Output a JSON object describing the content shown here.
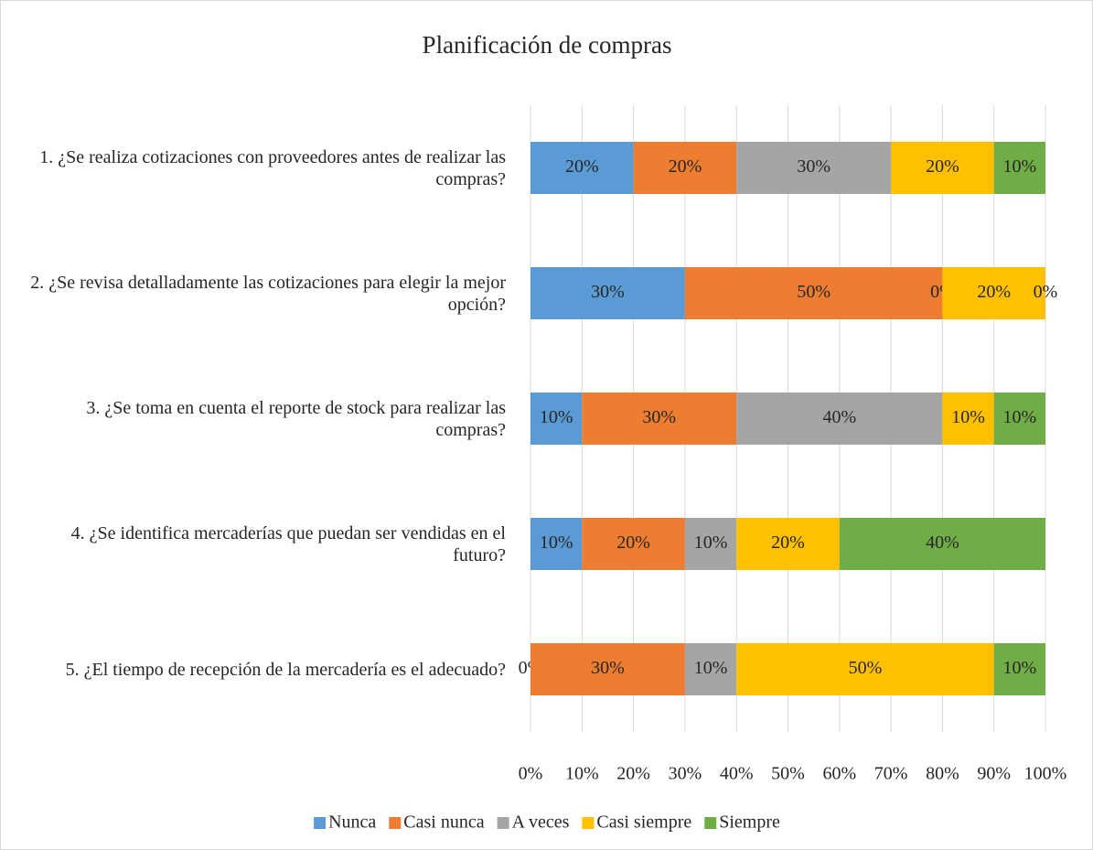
{
  "chart_data": {
    "type": "stacked_bar_horizontal",
    "title": "Planificación de compras",
    "categories": [
      "1. ¿Se realiza cotizaciones con proveedores antes de realizar las compras?",
      "2. ¿Se revisa detalladamente las cotizaciones para elegir la mejor opción?",
      "3. ¿Se toma en cuenta el reporte de stock para realizar las compras?",
      "4. ¿Se identifica mercaderías que puedan ser vendidas en el futuro?",
      "5. ¿El tiempo de recepción de la mercadería es el adecuado?"
    ],
    "series": [
      {
        "name": "Nunca",
        "color": "#5b9bd5",
        "values": [
          20,
          30,
          10,
          10,
          0
        ],
        "value_labels": [
          "20%",
          "30%",
          "10%",
          "10%",
          "0%"
        ]
      },
      {
        "name": "Casi nunca",
        "color": "#ed7d31",
        "values": [
          20,
          50,
          30,
          20,
          30
        ],
        "value_labels": [
          "20%",
          "50%",
          "30%",
          "20%",
          "30%"
        ]
      },
      {
        "name": "A veces",
        "color": "#a5a5a5",
        "values": [
          30,
          0,
          40,
          10,
          10
        ],
        "value_labels": [
          "30%",
          "0%",
          "40%",
          "10%",
          "10%"
        ]
      },
      {
        "name": "Casi siempre",
        "color": "#ffc000",
        "values": [
          20,
          20,
          10,
          20,
          50
        ],
        "value_labels": [
          "20%",
          "20%",
          "10%",
          "20%",
          "50%"
        ]
      },
      {
        "name": "Siempre",
        "color": "#70ad47",
        "values": [
          10,
          0,
          10,
          40,
          10
        ],
        "value_labels": [
          "10%",
          "0%",
          "10%",
          "40%",
          "10%"
        ]
      }
    ],
    "xlim": [
      0,
      100
    ],
    "xticks": [
      {
        "value": 0,
        "label": "0%"
      },
      {
        "value": 10,
        "label": "10%"
      },
      {
        "value": 20,
        "label": "20%"
      },
      {
        "value": 30,
        "label": "30%"
      },
      {
        "value": 40,
        "label": "40%"
      },
      {
        "value": 50,
        "label": "50%"
      },
      {
        "value": 60,
        "label": "60%"
      },
      {
        "value": 70,
        "label": "70%"
      },
      {
        "value": 80,
        "label": "80%"
      },
      {
        "value": 90,
        "label": "90%"
      },
      {
        "value": 100,
        "label": "100%"
      }
    ],
    "grid": true,
    "legend": "bottom"
  }
}
